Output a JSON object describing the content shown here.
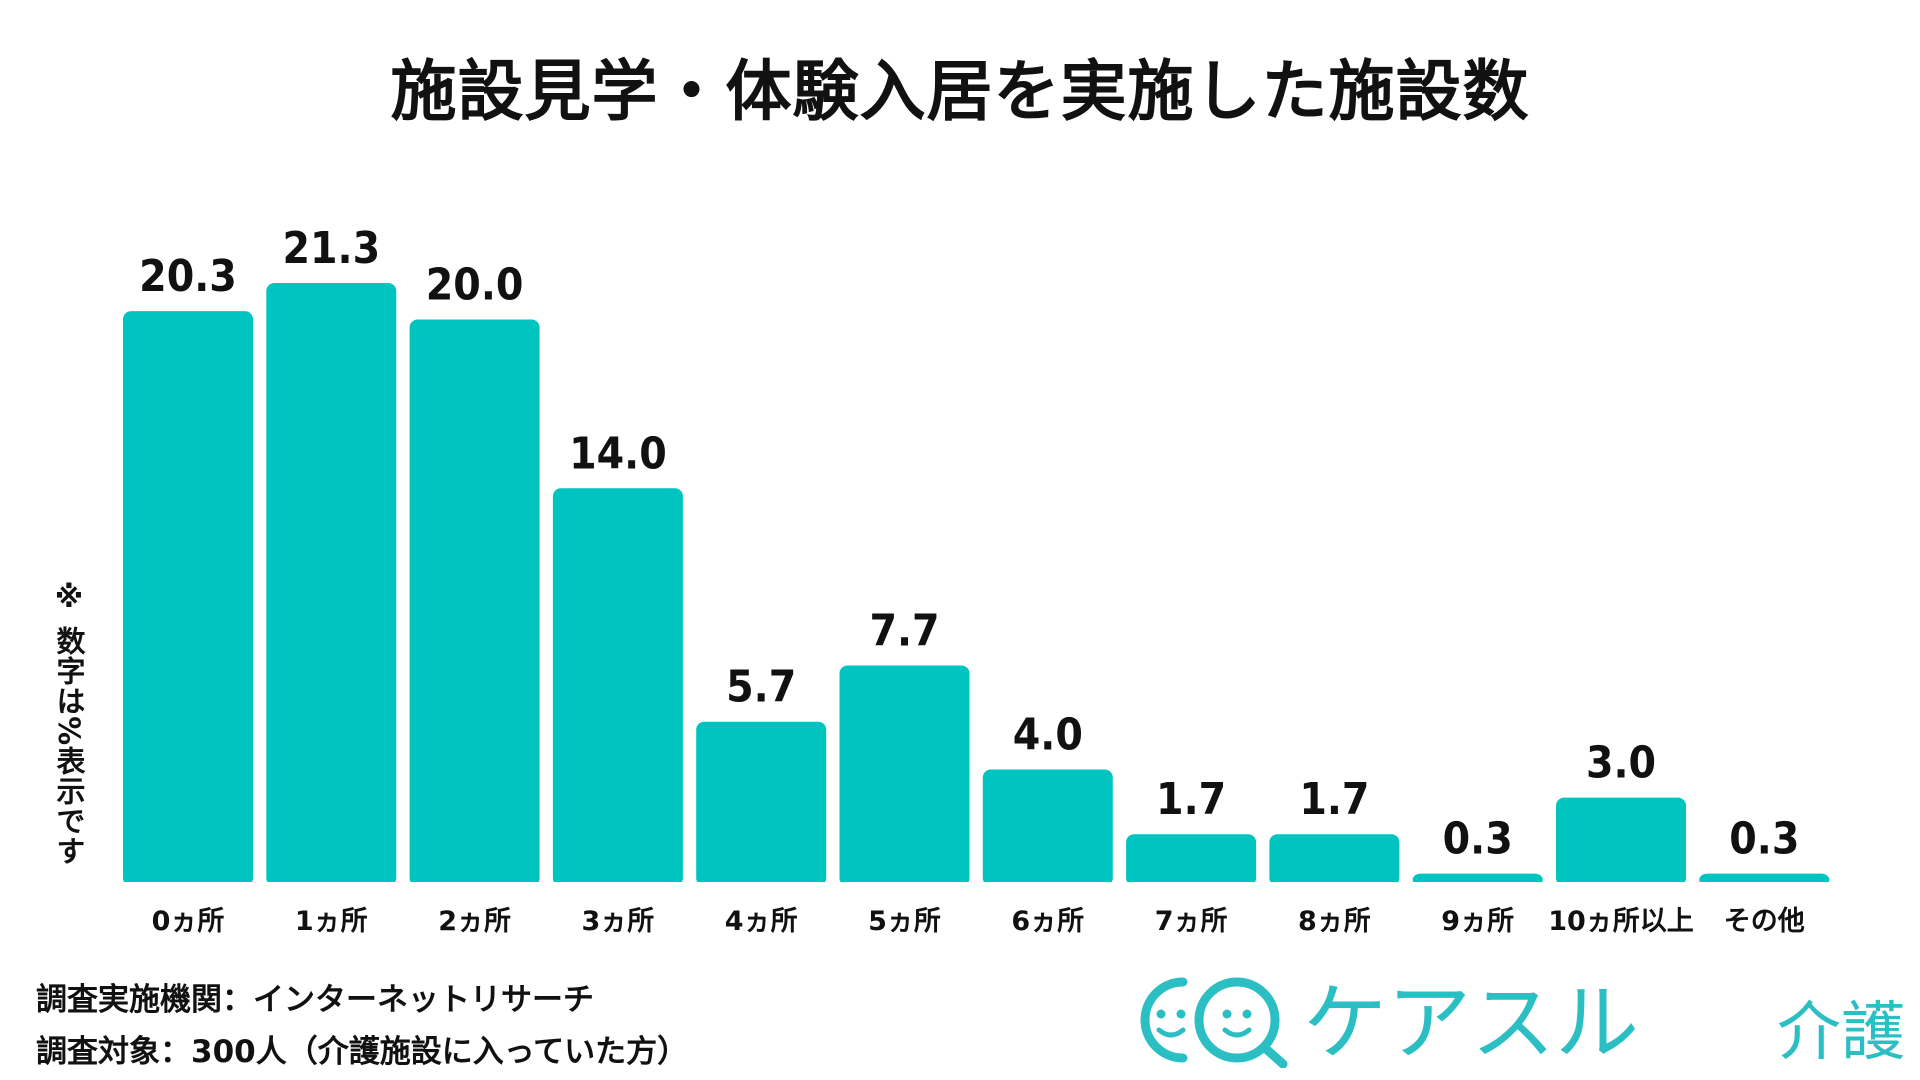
{
  "title": "施設見学・体験入居を実施した施設数",
  "note": "※ 数字は%表示です",
  "footer": {
    "agency": "調査実施機関：インターネットリサーチ",
    "target": "調査対象：300人（介護施設に入っていた方）"
  },
  "logo": {
    "text": "ケアスル",
    "suffix": "介護",
    "icon_name": "two-faces-logo-icon"
  },
  "colors": {
    "bar": "#00c4c0",
    "text": "#111111",
    "logo": "#2bbfc4"
  },
  "chart_data": {
    "type": "bar",
    "title": "施設見学・体験入居を実施した施設数",
    "categories": [
      "0ヵ所",
      "1ヵ所",
      "2ヵ所",
      "3ヵ所",
      "4ヵ所",
      "5ヵ所",
      "6ヵ所",
      "7ヵ所",
      "8ヵ所",
      "9ヵ所",
      "10ヵ所以上",
      "その他"
    ],
    "values": [
      20.3,
      21.3,
      20.0,
      14.0,
      5.7,
      7.7,
      4.0,
      1.7,
      1.7,
      0.3,
      3.0,
      0.3
    ],
    "value_labels": [
      "20.3",
      "21.3",
      "20.0",
      "14.0",
      "5.7",
      "7.7",
      "4.0",
      "1.7",
      "1.7",
      "0.3",
      "3.0",
      "0.3"
    ],
    "unit": "%",
    "ylim": [
      0,
      21.3
    ],
    "grid": false,
    "legend": "none"
  }
}
